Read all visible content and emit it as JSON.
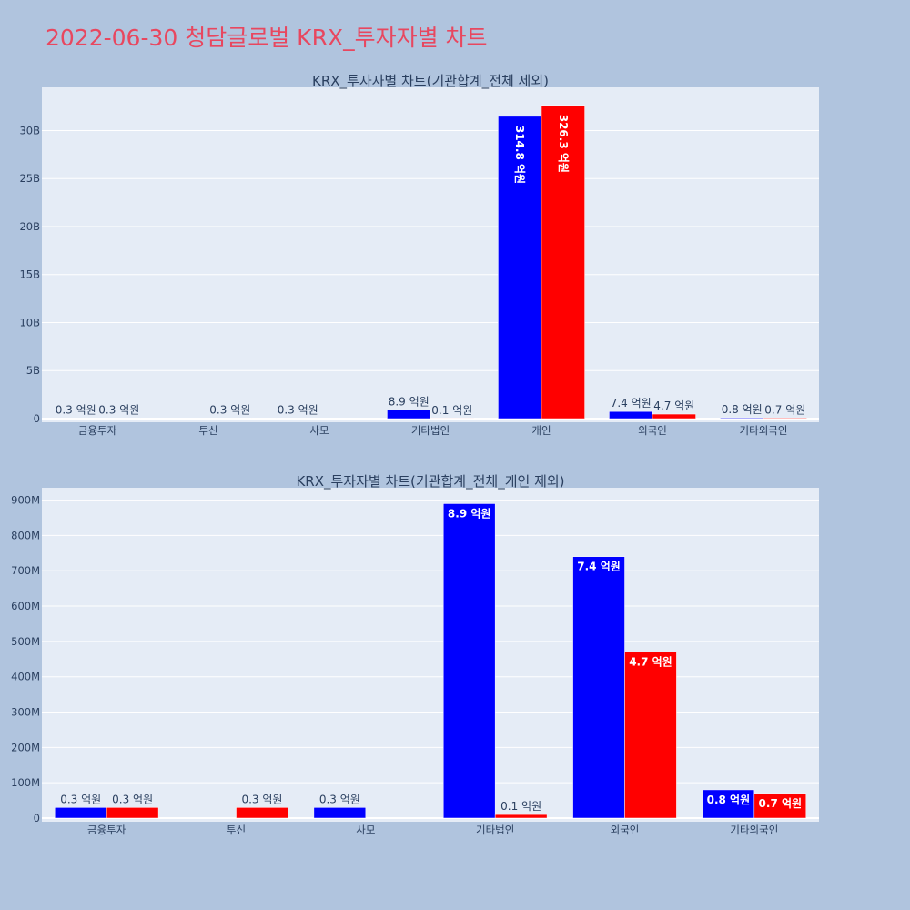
{
  "page_title": "2022-06-30 청담글로벌 KRX_투자자별 차트",
  "colors": {
    "buy": "#0000ff",
    "sell": "#ff0000",
    "plot_bg": "#e5ecf6",
    "page_bg": "#b0c4de",
    "title": "#e8475f"
  },
  "chart_data": [
    {
      "type": "bar",
      "title": "KRX_투자자별 차트(기관합계_전체 제외)",
      "categories": [
        "금융투자",
        "투신",
        "사모",
        "기타법인",
        "개인",
        "외국인",
        "기타외국인"
      ],
      "series": [
        {
          "values": [
            30000000,
            0,
            30000000,
            890000000,
            31480000000,
            740000000,
            80000000
          ],
          "labels": [
            "0.3 억원",
            "",
            "0.3 억원",
            "8.9 억원",
            "314.8 억원",
            "7.4 억원",
            "0.8 억원"
          ]
        },
        {
          "values": [
            30000000,
            30000000,
            0,
            10000000,
            32630000000,
            470000000,
            70000000
          ],
          "labels": [
            "0.3 억원",
            "0.3 억원",
            "",
            "0.1 억원",
            "326.3 억원",
            "4.7 억원",
            "0.7 억원"
          ]
        }
      ],
      "ylim": [
        0,
        34500000000
      ],
      "yticks": [
        0,
        5000000000,
        10000000000,
        15000000000,
        20000000000,
        25000000000,
        30000000000
      ],
      "yticklabels": [
        "0",
        "5B",
        "10B",
        "15B",
        "20B",
        "25B",
        "30B"
      ]
    },
    {
      "type": "bar",
      "title": "KRX_투자자별 차트(기관합계_전체_개인 제외)",
      "categories": [
        "금융투자",
        "투신",
        "사모",
        "기타법인",
        "외국인",
        "기타외국인"
      ],
      "series": [
        {
          "values": [
            30000000,
            0,
            30000000,
            890000000,
            740000000,
            80000000
          ],
          "labels": [
            "0.3 억원",
            "",
            "0.3 억원",
            "8.9 억원",
            "7.4 억원",
            "0.8 억원"
          ]
        },
        {
          "values": [
            30000000,
            30000000,
            0,
            10000000,
            470000000,
            70000000
          ],
          "labels": [
            "0.3 억원",
            "0.3 억원",
            "",
            "0.1 억원",
            "4.7 억원",
            "0.7 억원"
          ]
        }
      ],
      "ylim": [
        0,
        935000000
      ],
      "yticks": [
        0,
        100000000,
        200000000,
        300000000,
        400000000,
        500000000,
        600000000,
        700000000,
        800000000,
        900000000
      ],
      "yticklabels": [
        "0",
        "100M",
        "200M",
        "300M",
        "400M",
        "500M",
        "600M",
        "700M",
        "800M",
        "900M"
      ]
    }
  ]
}
